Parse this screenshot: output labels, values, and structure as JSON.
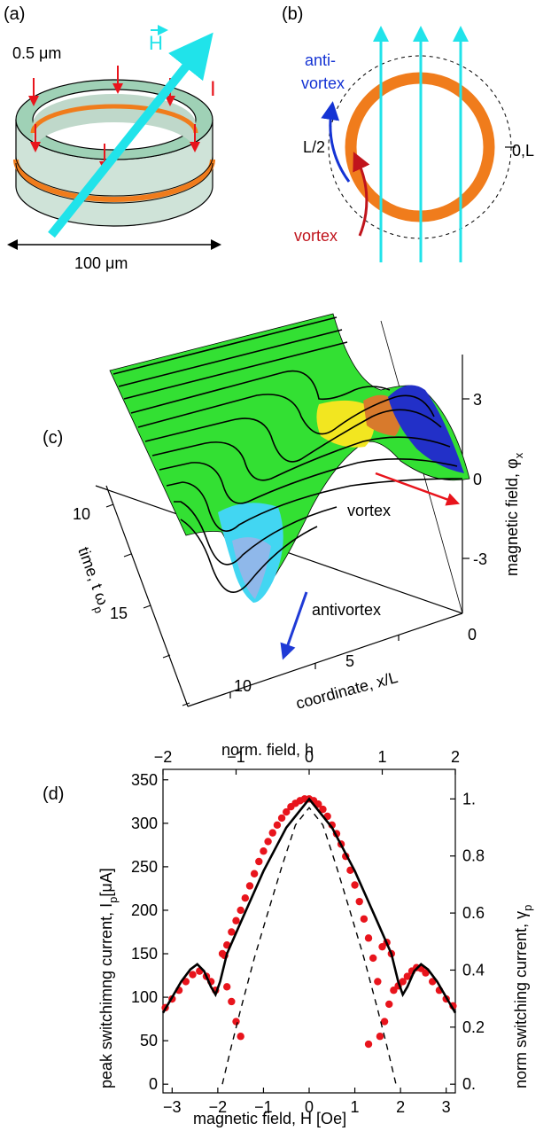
{
  "panel_a": {
    "label": "(a)",
    "thickness_label": "0.5 μm",
    "field_label": "H",
    "current_label": "I",
    "diameter_label": "100 μm",
    "colors": {
      "ring": "#9fd1b6",
      "ring_face": "#c9e7d5",
      "junction": "#f07c1c",
      "field": "#20e3ea",
      "current": "#e8141c"
    }
  },
  "panel_b": {
    "label": "(b)",
    "antivortex_label_1": "anti-",
    "antivortex_label_2": "vortex",
    "vortex_label": "vortex",
    "half_label": "L/2",
    "origin_label": "0,L",
    "colors": {
      "ring": "#f07c1c",
      "field": "#20e3ea",
      "antivortex": "#1433d4",
      "vortex": "#c0141c"
    }
  },
  "panel_c": {
    "label": "(c)",
    "vortex_label": "vortex",
    "antivortex_label": "antivortex",
    "z_axis_label": "magnetic field, φ",
    "z_axis_subscript": "x",
    "x_axis_label": "coordinate, x/L",
    "y_axis_label": "time, t ω",
    "y_axis_subscript": "p",
    "z_ticks": [
      "3",
      "0",
      "-3"
    ],
    "x_ticks": [
      "0",
      "5",
      "10"
    ],
    "y_ticks": [
      "10",
      "15"
    ],
    "colors": {
      "surface": "#33e033",
      "peak": "#2230c8",
      "dip": "#42d6f2",
      "yellow": "#f2e620",
      "orange": "#d87a2c",
      "vortex_arrow": "#e8141c",
      "antivortex_arrow": "#1f3ad6"
    }
  },
  "panel_d": {
    "label": "(d)",
    "chart_data": {
      "type": "scatter",
      "top_axis_label": "norm. field, h",
      "top_ticks": [
        "-2",
        "-1",
        "0",
        "1",
        "2"
      ],
      "left_axis_label": "peak switchimng current, I",
      "left_axis_subscript": "p",
      "left_axis_unit": "[μA]",
      "right_axis_label": "norm switching current, γ",
      "right_axis_subscript": "p",
      "xlabel": "magnetic field, H [Oe]",
      "x_ticks": [
        "-3",
        "-2",
        "-1",
        "0",
        "1",
        "2",
        "3"
      ],
      "y_ticks": [
        "0",
        "50",
        "100",
        "150",
        "200",
        "250",
        "300",
        "350"
      ],
      "right_ticks": [
        "0.",
        "0.2",
        "0.4",
        "0.6",
        "0.8",
        "1."
      ],
      "xlim": [
        -3.2,
        3.2
      ],
      "ylim": [
        -10,
        362
      ],
      "series": [
        {
          "kind": "points",
          "color": "#e8141c",
          "x": [
            -3.15,
            -3.0,
            -2.85,
            -2.7,
            -2.55,
            -2.4,
            -2.25,
            -2.15,
            -2.05,
            -1.9,
            -1.85,
            -1.8,
            -1.7,
            -1.6,
            -1.5,
            -1.8,
            -1.7,
            -1.6,
            -1.5,
            -1.4,
            -1.3,
            -1.2,
            -1.1,
            -1.0,
            -0.9,
            -0.8,
            -0.7,
            -0.6,
            -0.5,
            -0.4,
            -0.3,
            -0.2,
            -0.1,
            0.0,
            0.1,
            0.2,
            0.3,
            0.4,
            0.5,
            0.6,
            0.7,
            0.8,
            0.9,
            1.0,
            1.1,
            1.2,
            1.3,
            1.4,
            1.5,
            1.6,
            1.7,
            1.8,
            1.3,
            1.55,
            1.65,
            1.75,
            1.85,
            1.95,
            2.05,
            2.15,
            2.25,
            2.35,
            2.45,
            2.55,
            2.7,
            2.85,
            3.0,
            3.15
          ],
          "y": [
            88,
            98,
            108,
            118,
            126,
            130,
            124,
            118,
            108,
            150,
            148,
            112,
            95,
            72,
            55,
            160,
            175,
            188,
            200,
            214,
            228,
            242,
            256,
            268,
            279,
            289,
            298,
            306,
            313,
            319,
            323,
            326,
            328,
            328,
            326,
            322,
            316,
            308,
            298,
            288,
            276,
            262,
            246,
            229,
            210,
            190,
            168,
            145,
            118,
            158,
            163,
            150,
            46,
            55,
            72,
            92,
            108,
            113,
            118,
            124,
            130,
            134,
            133,
            128,
            118,
            108,
            98,
            90
          ]
        },
        {
          "kind": "line",
          "color": "#000000",
          "x": [
            -3.2,
            -3.0,
            -2.8,
            -2.6,
            -2.45,
            -2.3,
            -2.15,
            -2.05,
            -1.95,
            -1.8,
            -1.5,
            -1.0,
            -0.5,
            0.0,
            0.5,
            1.0,
            1.5,
            1.8,
            1.95,
            2.05,
            2.15,
            2.3,
            2.45,
            2.6,
            2.8,
            3.0,
            3.2
          ],
          "y": [
            82,
            100,
            118,
            132,
            138,
            130,
            112,
            103,
            118,
            150,
            186,
            245,
            295,
            328,
            295,
            245,
            186,
            150,
            118,
            103,
            112,
            130,
            138,
            132,
            118,
            100,
            82
          ]
        },
        {
          "kind": "dashed",
          "color": "#000000",
          "x": [
            -1.9,
            -1.7,
            -1.5,
            -1.2,
            -0.9,
            -0.6,
            -0.3,
            0.0,
            0.3,
            0.6,
            0.9,
            1.2,
            1.5,
            1.7,
            1.9
          ],
          "y": [
            0,
            44,
            86,
            145,
            198,
            250,
            298,
            318,
            298,
            250,
            198,
            145,
            86,
            44,
            0
          ]
        }
      ]
    }
  }
}
